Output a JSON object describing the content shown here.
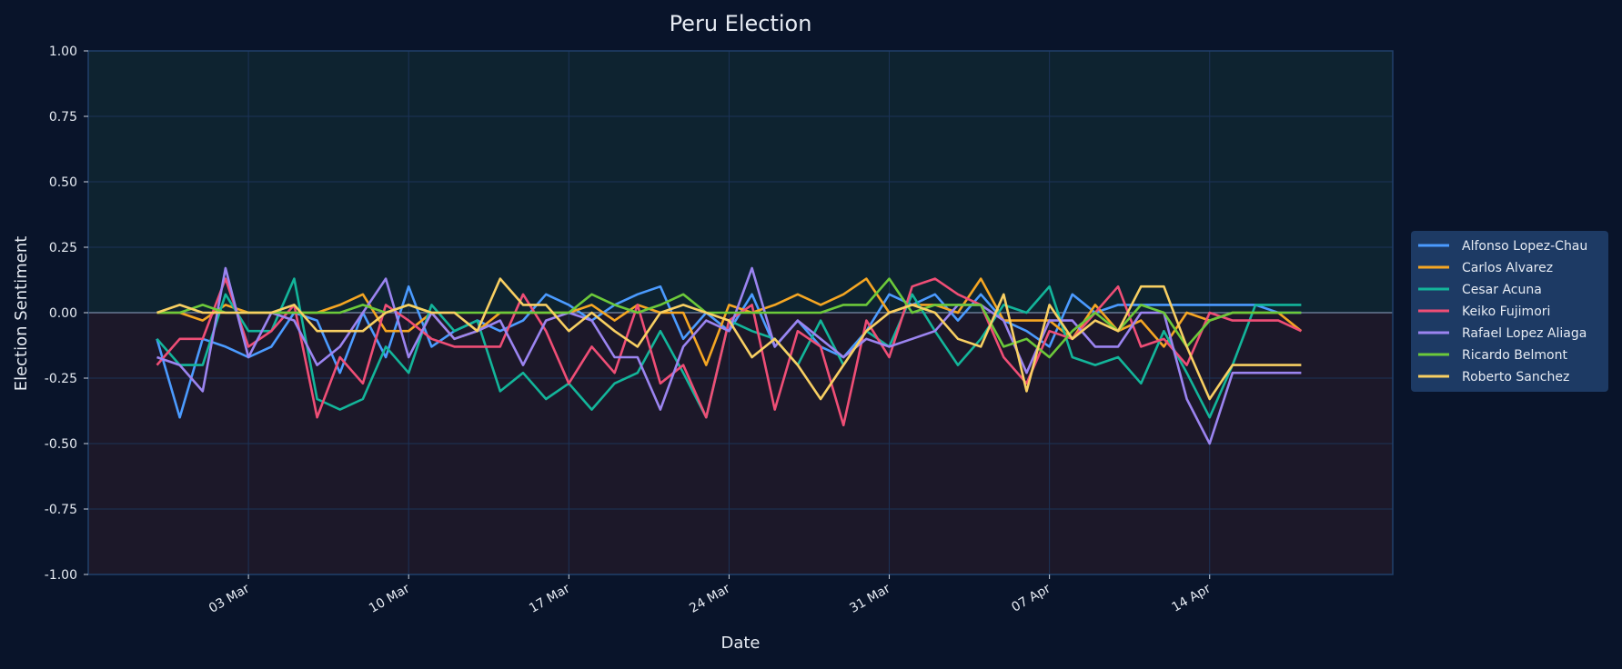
{
  "chart_data": {
    "type": "line",
    "title": "Peru Election",
    "xlabel": "Date",
    "ylabel": "Election Sentiment",
    "ylim": [
      -1,
      1
    ],
    "xlim": [
      "2026-02-24",
      "2026-04-22"
    ],
    "yticks": [
      1,
      0.75,
      0.5,
      0.25,
      0,
      -0.25,
      -0.5,
      -0.75,
      -1
    ],
    "ytick_labels": [
      "1.00",
      "0.75",
      "0.50",
      "0.25",
      "0.00",
      "-0.25",
      "-0.50",
      "-0.75",
      "-1.00"
    ],
    "xticks": [
      "2026-03-03",
      "2026-03-10",
      "2026-03-17",
      "2026-03-24",
      "2026-03-31",
      "2026-04-07",
      "2026-04-14"
    ],
    "xtick_labels": [
      "03 Mar",
      "10 Mar",
      "17 Mar",
      "24 Mar",
      "31 Mar",
      "07 Apr",
      "14 Apr"
    ],
    "grid": true,
    "legend_position": "right",
    "x": [
      "2026-02-27",
      "2026-02-28",
      "2026-03-01",
      "2026-03-02",
      "2026-03-03",
      "2026-03-04",
      "2026-03-05",
      "2026-03-06",
      "2026-03-07",
      "2026-03-08",
      "2026-03-09",
      "2026-03-10",
      "2026-03-11",
      "2026-03-12",
      "2026-03-13",
      "2026-03-14",
      "2026-03-15",
      "2026-03-16",
      "2026-03-17",
      "2026-03-18",
      "2026-03-19",
      "2026-03-20",
      "2026-03-21",
      "2026-03-22",
      "2026-03-23",
      "2026-03-24",
      "2026-03-25",
      "2026-03-26",
      "2026-03-27",
      "2026-03-28",
      "2026-03-29",
      "2026-03-30",
      "2026-03-31",
      "2026-04-01",
      "2026-04-02",
      "2026-04-03",
      "2026-04-04",
      "2026-04-05",
      "2026-04-06",
      "2026-04-07",
      "2026-04-08",
      "2026-04-09",
      "2026-04-10",
      "2026-04-11",
      "2026-04-12",
      "2026-04-13",
      "2026-04-14",
      "2026-04-15",
      "2026-04-16",
      "2026-04-17",
      "2026-04-18"
    ],
    "series": [
      {
        "name": "Alfonso Lopez-Chau",
        "color": "#4b9bff",
        "values": [
          -0.1,
          -0.4,
          -0.1,
          -0.13,
          -0.17,
          -0.13,
          0.0,
          -0.03,
          -0.23,
          0.0,
          -0.17,
          0.1,
          -0.13,
          -0.07,
          -0.03,
          -0.07,
          -0.03,
          0.07,
          0.03,
          -0.03,
          0.03,
          0.07,
          0.1,
          -0.1,
          0.0,
          -0.07,
          0.07,
          -0.13,
          -0.03,
          -0.13,
          -0.17,
          -0.07,
          0.07,
          0.03,
          0.07,
          -0.03,
          0.07,
          -0.03,
          -0.07,
          -0.13,
          0.07,
          0.0,
          0.03,
          0.03,
          0.03,
          0.03,
          0.03,
          0.03,
          0.03,
          0.0,
          0.0
        ]
      },
      {
        "name": "Carlos Alvarez",
        "color": "#f5a623",
        "values": [
          0.0,
          0.0,
          -0.03,
          0.03,
          0.0,
          0.0,
          0.0,
          0.0,
          0.03,
          0.07,
          -0.07,
          -0.07,
          0.0,
          -0.1,
          -0.07,
          0.0,
          0.0,
          0.0,
          0.0,
          0.03,
          -0.03,
          0.03,
          0.0,
          0.0,
          -0.2,
          0.03,
          0.0,
          0.03,
          0.07,
          0.03,
          0.07,
          0.13,
          0.0,
          0.03,
          0.03,
          0.0,
          0.13,
          -0.03,
          -0.03,
          -0.03,
          -0.1,
          0.03,
          -0.07,
          -0.03,
          -0.13,
          0.0,
          -0.03,
          0.0,
          0.0,
          0.0,
          -0.07
        ]
      },
      {
        "name": "Cesar Acuna",
        "color": "#13b59a",
        "values": [
          -0.1,
          -0.2,
          -0.2,
          0.07,
          -0.07,
          -0.07,
          0.13,
          -0.33,
          -0.37,
          -0.33,
          -0.13,
          -0.23,
          0.03,
          -0.07,
          -0.03,
          -0.3,
          -0.23,
          -0.33,
          -0.27,
          -0.37,
          -0.27,
          -0.23,
          -0.07,
          -0.23,
          -0.4,
          -0.03,
          -0.07,
          -0.1,
          -0.2,
          -0.03,
          -0.2,
          -0.07,
          -0.13,
          0.07,
          -0.07,
          -0.2,
          -0.1,
          0.03,
          0.0,
          0.1,
          -0.17,
          -0.2,
          -0.17,
          -0.27,
          -0.07,
          -0.23,
          -0.4,
          -0.2,
          0.03,
          0.03,
          0.03
        ]
      },
      {
        "name": "Keiko Fujimori",
        "color": "#ef4e76",
        "values": [
          -0.2,
          -0.1,
          -0.1,
          0.13,
          -0.13,
          -0.07,
          0.03,
          -0.4,
          -0.17,
          -0.27,
          0.03,
          -0.03,
          -0.1,
          -0.13,
          -0.13,
          -0.13,
          0.07,
          -0.07,
          -0.27,
          -0.13,
          -0.23,
          0.03,
          -0.27,
          -0.2,
          -0.4,
          -0.03,
          0.03,
          -0.37,
          -0.07,
          -0.13,
          -0.43,
          -0.03,
          -0.17,
          0.1,
          0.13,
          0.07,
          0.03,
          -0.17,
          -0.27,
          -0.07,
          -0.1,
          0.0,
          0.1,
          -0.13,
          -0.1,
          -0.2,
          0.0,
          -0.03,
          -0.03,
          -0.03,
          -0.07
        ]
      },
      {
        "name": "Rafael Lopez Aliaga",
        "color": "#9b84f0",
        "values": [
          -0.17,
          -0.2,
          -0.3,
          0.17,
          -0.17,
          0.0,
          -0.03,
          -0.2,
          -0.13,
          0.0,
          0.13,
          -0.17,
          0.0,
          -0.1,
          -0.07,
          -0.03,
          -0.2,
          -0.03,
          0.0,
          -0.03,
          -0.17,
          -0.17,
          -0.37,
          -0.13,
          -0.03,
          -0.07,
          0.17,
          -0.13,
          -0.03,
          -0.1,
          -0.17,
          -0.1,
          -0.13,
          -0.1,
          -0.07,
          0.03,
          0.03,
          -0.03,
          -0.23,
          -0.03,
          -0.03,
          -0.13,
          -0.13,
          0.0,
          0.0,
          -0.33,
          -0.5,
          -0.23,
          -0.23,
          -0.23,
          -0.23
        ]
      },
      {
        "name": "Ricardo Belmont",
        "color": "#6cc93a",
        "values": [
          0.0,
          0.0,
          0.03,
          0.0,
          0.0,
          0.0,
          0.0,
          0.0,
          0.0,
          0.03,
          0.0,
          0.03,
          0.0,
          0.0,
          0.0,
          0.0,
          0.0,
          0.0,
          0.0,
          0.07,
          0.03,
          0.0,
          0.03,
          0.07,
          0.0,
          0.0,
          0.0,
          0.0,
          0.0,
          0.0,
          0.03,
          0.03,
          0.13,
          0.0,
          0.03,
          0.03,
          0.03,
          -0.13,
          -0.1,
          -0.17,
          -0.07,
          0.0,
          -0.07,
          0.03,
          0.0,
          -0.13,
          -0.03,
          0.0,
          0.0,
          0.0,
          0.0
        ]
      },
      {
        "name": "Roberto Sanchez",
        "color": "#f8cf62",
        "values": [
          0.0,
          0.03,
          0.0,
          0.0,
          0.0,
          0.0,
          0.03,
          -0.07,
          -0.07,
          -0.07,
          0.0,
          0.03,
          0.0,
          0.0,
          -0.07,
          0.13,
          0.03,
          0.03,
          -0.07,
          0.0,
          -0.07,
          -0.13,
          0.0,
          0.03,
          0.0,
          -0.03,
          -0.17,
          -0.1,
          -0.2,
          -0.33,
          -0.2,
          -0.07,
          0.0,
          0.03,
          0.0,
          -0.1,
          -0.13,
          0.07,
          -0.3,
          0.03,
          -0.1,
          -0.03,
          -0.07,
          0.1,
          0.1,
          -0.13,
          -0.33,
          -0.2,
          -0.2,
          -0.2,
          -0.2
        ]
      }
    ]
  }
}
